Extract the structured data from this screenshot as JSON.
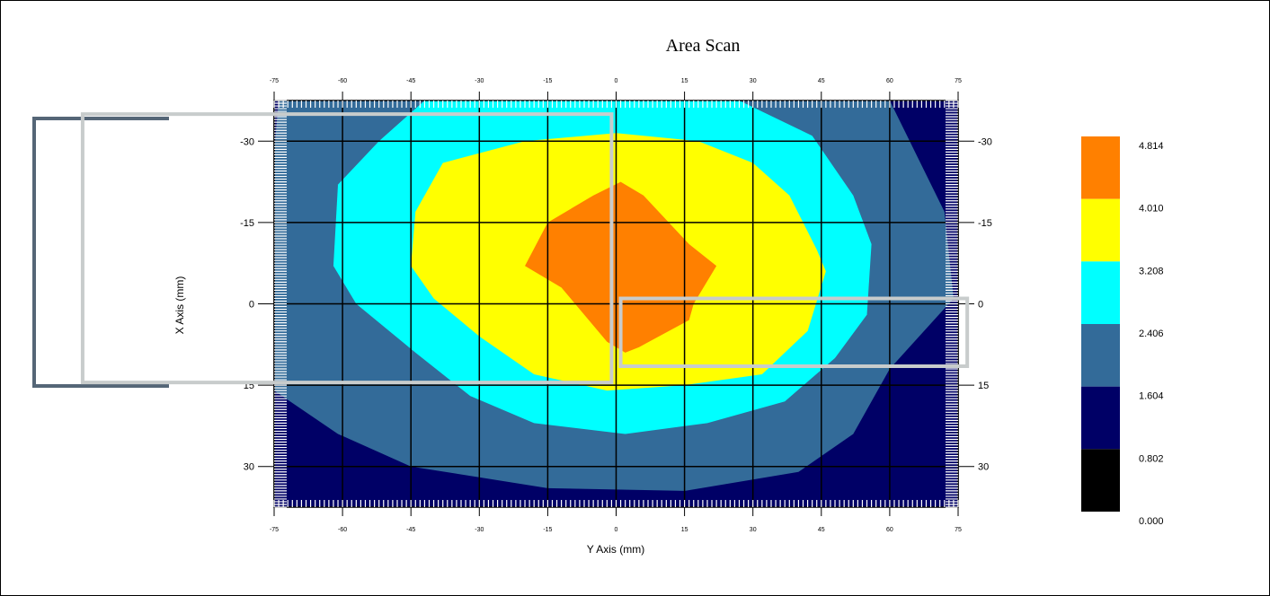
{
  "chart_data": {
    "type": "heatmap",
    "subtype": "contour",
    "title": "Area Scan",
    "xlabel": "Y Axis (mm)",
    "ylabel": "X Axis (mm)",
    "xlim": [
      -75,
      75
    ],
    "ylim": [
      -37.5,
      37.5
    ],
    "y_inverted": true,
    "x_ticks": [
      -75,
      -60,
      -45,
      -30,
      -15,
      0,
      15,
      30,
      45,
      60,
      75
    ],
    "x_tick_labels": [
      "-75",
      "-60",
      "-45",
      "-30",
      "-15",
      "0",
      "15",
      "30",
      "45",
      "60",
      "75"
    ],
    "y_ticks": [
      -30,
      -15,
      0,
      15,
      30
    ],
    "y_tick_labels": [
      "-30",
      "-15",
      "0",
      "15",
      "30"
    ],
    "grid": true,
    "legend": {
      "position": "right",
      "levels": [
        "0.000",
        "0.802",
        "1.604",
        "2.406",
        "3.208",
        "4.010",
        "4.814"
      ],
      "colors": [
        "#000000",
        "#000066",
        "#336b99",
        "#00ffff",
        "#ffff00",
        "#ff8000"
      ]
    },
    "bands": [
      {
        "range": [
          0.0,
          0.802
        ],
        "color": "#000000",
        "polygons": [
          [
            [
              75,
              -37.5
            ],
            [
              64,
              -37.5
            ],
            [
              68,
              -26
            ],
            [
              75,
              -19
            ]
          ],
          [
            [
              -75,
              37.5
            ],
            [
              -75,
              25
            ],
            [
              -66,
              33
            ],
            [
              -57,
              37.5
            ]
          ],
          [
            [
              75,
              37.5
            ],
            [
              58,
              37.5
            ],
            [
              69,
              31
            ],
            [
              75,
              27
            ]
          ]
        ]
      },
      {
        "range": [
          0.802,
          1.604
        ],
        "color": "#000066",
        "polygons": [
          [
            [
              -75,
              -37.5
            ],
            [
              75,
              -37.5
            ],
            [
              75,
              37.5
            ],
            [
              -75,
              37.5
            ]
          ]
        ]
      },
      {
        "range": [
          1.604,
          2.406
        ],
        "color": "#336b99",
        "polygons": [
          [
            [
              -74,
              -37.5
            ],
            [
              60,
              -37.5
            ],
            [
              72,
              -17
            ],
            [
              74,
              -1
            ],
            [
              60,
              12
            ],
            [
              52,
              24
            ],
            [
              40,
              31
            ],
            [
              15,
              34.5
            ],
            [
              -15,
              34
            ],
            [
              -45,
              30
            ],
            [
              -61,
              24
            ],
            [
              -75,
              16
            ],
            [
              -75,
              -28
            ]
          ]
        ]
      },
      {
        "range": [
          2.406,
          3.208
        ],
        "color": "#00ffff",
        "polygons": [
          [
            [
              -42,
              -37.5
            ],
            [
              27,
              -37.5
            ],
            [
              43,
              -31
            ],
            [
              52,
              -20
            ],
            [
              56,
              -11
            ],
            [
              55,
              2
            ],
            [
              48,
              10
            ],
            [
              37,
              18
            ],
            [
              20,
              22
            ],
            [
              2,
              24
            ],
            [
              -18,
              22
            ],
            [
              -32,
              17
            ],
            [
              -44,
              9
            ],
            [
              -57,
              0
            ],
            [
              -62,
              -7
            ],
            [
              -61,
              -22
            ],
            [
              -52,
              -30
            ]
          ]
        ]
      },
      {
        "range": [
          3.208,
          4.01
        ],
        "color": "#ffff00",
        "polygons": [
          [
            [
              -38,
              -26
            ],
            [
              -20,
              -30
            ],
            [
              0,
              -31.5
            ],
            [
              18,
              -30
            ],
            [
              30,
              -26
            ],
            [
              38,
              -20
            ],
            [
              44,
              -10
            ],
            [
              46,
              -6
            ],
            [
              42,
              5
            ],
            [
              32,
              13
            ],
            [
              15,
              15
            ],
            [
              -2,
              16
            ],
            [
              -18,
              13
            ],
            [
              -30,
              6
            ],
            [
              -40,
              -1
            ],
            [
              -45,
              -7
            ],
            [
              -44,
              -17
            ]
          ]
        ]
      },
      {
        "range": [
          4.01,
          4.814
        ],
        "color": "#ff8000",
        "polygons": [
          [
            [
              -15,
              -15
            ],
            [
              -5,
              -20
            ],
            [
              1,
              -22.5
            ],
            [
              6,
              -20
            ],
            [
              16,
              -11
            ],
            [
              22,
              -7
            ],
            [
              17,
              0
            ],
            [
              16,
              3
            ],
            [
              5,
              8
            ],
            [
              2,
              9
            ],
            [
              -2,
              7
            ],
            [
              -12,
              -3
            ],
            [
              -20,
              -7
            ]
          ]
        ]
      }
    ],
    "overlays": [
      {
        "points": [
          [
            -117,
            -35
          ],
          [
            -1,
            -35
          ],
          [
            -1,
            14.5
          ],
          [
            -117,
            14.5
          ]
        ],
        "stroke": "#c8cccc"
      },
      {
        "points": [
          [
            1,
            -1
          ],
          [
            77,
            -1
          ],
          [
            77,
            11.5
          ],
          [
            1,
            11.5
          ]
        ],
        "stroke": "#c8cccc"
      }
    ]
  }
}
